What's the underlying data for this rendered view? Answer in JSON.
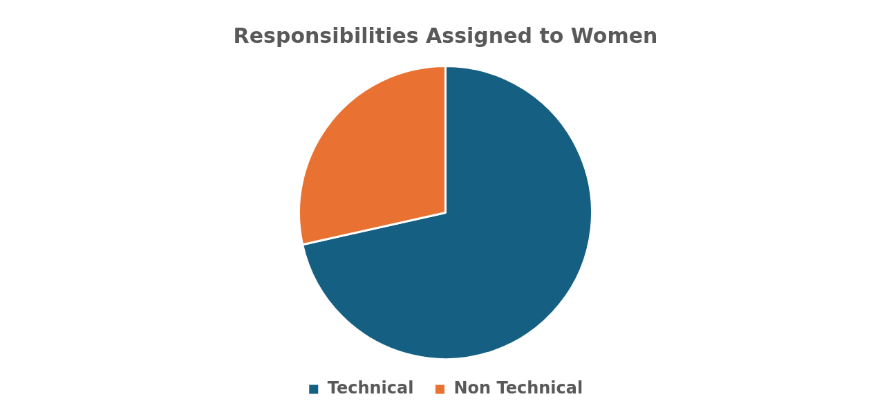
{
  "chart_data": {
    "type": "pie",
    "title": "Responsibilities Assigned to Women",
    "categories": [
      "Technical",
      "Non Technical"
    ],
    "values": [
      71.5,
      28.5
    ],
    "colors": [
      "#156082",
      "#e97132"
    ],
    "legend": "bottom"
  }
}
